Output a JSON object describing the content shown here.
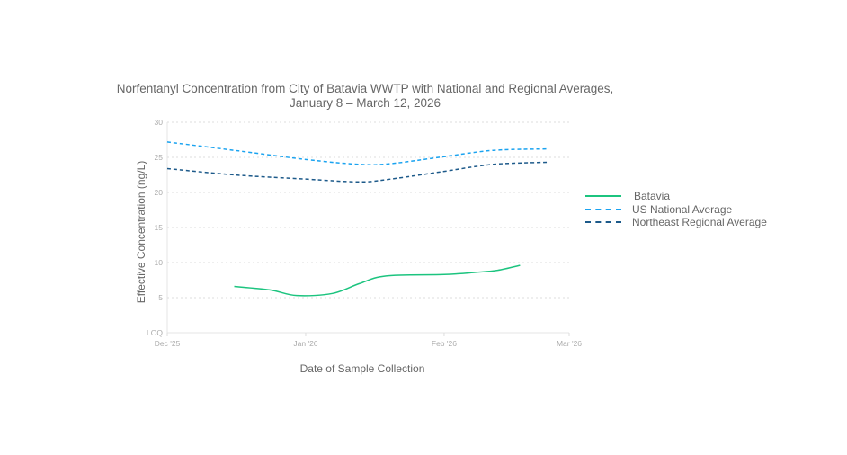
{
  "chart_data": {
    "type": "line",
    "title": "Norfentanyl Concentration from City of Batavia WWTP with National and Regional Averages,",
    "subtitle": "January 8 – March 12, 2026",
    "xlabel": "Date of Sample Collection",
    "ylabel": "Effective Concentration (ng/L)",
    "x_ticks": [
      {
        "date": "2025-12-01",
        "label": "Dec '25"
      },
      {
        "date": "2026-01-01",
        "label": "Jan '26"
      },
      {
        "date": "2026-02-01",
        "label": "Feb '26"
      },
      {
        "date": "2026-03-01",
        "label": "Mar '26"
      }
    ],
    "y_ticks": [
      {
        "value": 0,
        "label": "LOQ"
      },
      {
        "value": 5,
        "label": "5"
      },
      {
        "value": 10,
        "label": "10"
      },
      {
        "value": 15,
        "label": "15"
      },
      {
        "value": 20,
        "label": "20"
      },
      {
        "value": 25,
        "label": "25"
      },
      {
        "value": 30,
        "label": "30"
      }
    ],
    "xlim": [
      "2025-12-01",
      "2026-03-01"
    ],
    "ylim": [
      0,
      30
    ],
    "grid": "horizontal dotted",
    "legend_position": "right",
    "series": [
      {
        "name": "Batavia",
        "color": "#1cc47f",
        "style": "solid",
        "x": [
          "2025-12-16",
          "2025-12-24",
          "2025-12-30",
          "2026-01-07",
          "2026-01-13",
          "2026-01-19",
          "2026-02-01",
          "2026-02-08",
          "2026-02-13",
          "2026-02-18"
        ],
        "y": [
          6.6,
          6.1,
          5.3,
          5.6,
          7.0,
          8.1,
          8.3,
          8.6,
          8.9,
          9.6
        ]
      },
      {
        "name": "US National Average",
        "color": "#1aa3f0",
        "style": "dashed",
        "x": [
          "2025-12-01",
          "2025-12-16",
          "2026-01-01",
          "2026-01-13",
          "2026-01-20",
          "2026-02-01",
          "2026-02-12",
          "2026-02-24"
        ],
        "y": [
          27.2,
          26.0,
          24.7,
          24.0,
          24.1,
          25.1,
          26.0,
          26.2
        ]
      },
      {
        "name": "Northeast Regional Average",
        "color": "#1d5a8a",
        "style": "dashed",
        "x": [
          "2025-12-01",
          "2025-12-16",
          "2026-01-01",
          "2026-01-13",
          "2026-01-20",
          "2026-02-01",
          "2026-02-12",
          "2026-02-24"
        ],
        "y": [
          23.4,
          22.5,
          21.9,
          21.5,
          21.9,
          23.0,
          24.0,
          24.3
        ]
      }
    ]
  }
}
